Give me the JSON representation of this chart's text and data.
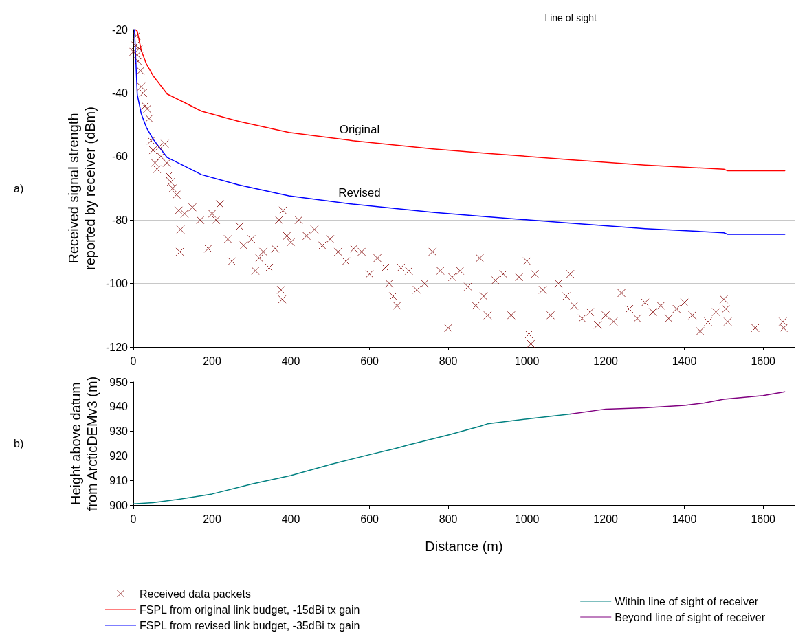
{
  "chart_data": [
    {
      "type": "scatter",
      "ylabel": "Received signal strength reported by receiver (dBm)",
      "xlim": [
        0,
        1680
      ],
      "xticks": [
        0,
        200,
        400,
        600,
        800,
        1000,
        1200,
        1400,
        1600
      ],
      "ylim": [
        -120,
        -20
      ],
      "yticks": [
        -120,
        -100,
        -80,
        -60,
        -40,
        -20
      ],
      "grid": "y",
      "legend": "bottom left",
      "marker": "none",
      "line_style": "solid",
      "ref_lines": [
        {
          "axis": "x",
          "value": 1111,
          "label": "Line of sight",
          "color": "#000000"
        }
      ],
      "annotations": [
        "a)",
        "Original",
        "Revised"
      ],
      "series": [
        {
          "name": "Received data packets",
          "type": "scatter",
          "marker": "cross",
          "color": "#800000",
          "x": [
            0,
            5,
            8,
            10,
            12,
            15,
            18,
            20,
            25,
            30,
            35,
            40,
            45,
            50,
            55,
            60,
            65,
            70,
            80,
            85,
            90,
            95,
            100,
            110,
            115,
            120,
            118,
            130,
            150,
            170,
            190,
            200,
            210,
            220,
            240,
            250,
            270,
            280,
            300,
            310,
            320,
            330,
            345,
            360,
            370,
            375,
            378,
            380,
            390,
            400,
            420,
            440,
            460,
            480,
            500,
            520,
            540,
            560,
            580,
            600,
            620,
            640,
            650,
            660,
            670,
            680,
            700,
            720,
            740,
            760,
            780,
            800,
            810,
            830,
            850,
            870,
            880,
            890,
            900,
            920,
            940,
            960,
            980,
            1000,
            1005,
            1010,
            1020,
            1040,
            1060,
            1080,
            1100,
            1110,
            1120,
            1140,
            1160,
            1180,
            1200,
            1220,
            1240,
            1260,
            1280,
            1300,
            1320,
            1340,
            1360,
            1380,
            1400,
            1420,
            1440,
            1460,
            1480,
            1500,
            1505,
            1510,
            1580,
            1650,
            1652
          ],
          "values": [
            -27,
            -25,
            -22,
            -28,
            -30,
            -26,
            -33,
            -38,
            -40,
            -44,
            -45,
            -48,
            -55,
            -58,
            -62,
            -64,
            -57,
            -60,
            -56,
            -62,
            -66,
            -68,
            -70,
            -72,
            -77,
            -83,
            -90,
            -78,
            -76,
            -80,
            -89,
            -78,
            -80,
            -75,
            -86,
            -93,
            -82,
            -88,
            -86,
            -96,
            -92,
            -90,
            -95,
            -89,
            -80,
            -102,
            -105,
            -77,
            -85,
            -87,
            -80,
            -85,
            -83,
            -88,
            -86,
            -90,
            -93,
            -89,
            -90,
            -97,
            -92,
            -95,
            -100,
            -104,
            -107,
            -95,
            -96,
            -102,
            -100,
            -90,
            -96,
            -114,
            -98,
            -96,
            -101,
            -107,
            -92,
            -104,
            -110,
            -99,
            -97,
            -110,
            -98,
            -93,
            -116,
            -119,
            -97,
            -102,
            -110,
            -100,
            -104,
            -97,
            -107,
            -111,
            -109,
            -113,
            -110,
            -112,
            -103,
            -108,
            -111,
            -106,
            -109,
            -107,
            -111,
            -108,
            -106,
            -110,
            -115,
            -112,
            -109,
            -105,
            -108,
            -112,
            -114,
            -112,
            -114
          ]
        },
        {
          "name": "FSPL from original link budget, -15dBi tx gain",
          "type": "line",
          "color": "#ff0000",
          "x": [
            5,
            10,
            20,
            33,
            50,
            86,
            130,
            173,
            267,
            395,
            557,
            761,
            900,
            1111,
            1300,
            1500,
            1510,
            1655
          ],
          "values": [
            -20,
            -20.5,
            -26.5,
            -30.8,
            -34.5,
            -40.3,
            -43,
            -45.7,
            -48.9,
            -52.4,
            -55,
            -57.6,
            -59,
            -61,
            -62.7,
            -64,
            -64.5,
            -64.5
          ]
        },
        {
          "name": "FSPL from revised link budget, -35dBi tx gain",
          "type": "line",
          "color": "#0000ff",
          "x": [
            3,
            10,
            20,
            33,
            50,
            86,
            130,
            173,
            267,
            395,
            557,
            761,
            900,
            1111,
            1300,
            1500,
            1510,
            1655
          ],
          "values": [
            -20,
            -40.5,
            -46.5,
            -50.8,
            -54.5,
            -60.3,
            -63,
            -65.7,
            -68.9,
            -72.4,
            -75,
            -77.6,
            -79,
            -81,
            -82.7,
            -84,
            -84.5,
            -84.5
          ]
        }
      ]
    },
    {
      "type": "line",
      "xlabel": "Distance (m)",
      "ylabel": "Height above datum from ArcticDEMv3 (m)",
      "xlim": [
        0,
        1680
      ],
      "xticks": [
        0,
        200,
        400,
        600,
        800,
        1000,
        1200,
        1400,
        1600
      ],
      "ylim": [
        900,
        950
      ],
      "yticks": [
        900,
        910,
        920,
        930,
        940,
        950
      ],
      "grid": false,
      "legend": "bottom right",
      "marker": "none",
      "line_style": "solid",
      "ref_lines": [
        {
          "axis": "x",
          "value": 1111,
          "label": null,
          "color": "#000000"
        }
      ],
      "annotations": [
        "b)"
      ],
      "series": [
        {
          "name": "Within line of sight of receiver",
          "color": "#008080",
          "x": [
            0,
            50,
            100,
            200,
            300,
            400,
            500,
            600,
            665,
            700,
            800,
            880,
            900,
            1000,
            1111
          ],
          "values": [
            900.5,
            901,
            902,
            904.5,
            908.5,
            912,
            916.5,
            920.5,
            923,
            924.5,
            928.5,
            932,
            933,
            935,
            937
          ]
        },
        {
          "name": "Beyond line of sight of receiver",
          "color": "#800080",
          "x": [
            1111,
            1200,
            1300,
            1400,
            1450,
            1500,
            1600,
            1655
          ],
          "values": [
            937,
            939,
            939.5,
            940.5,
            941.5,
            943,
            944.5,
            946
          ]
        }
      ]
    }
  ]
}
